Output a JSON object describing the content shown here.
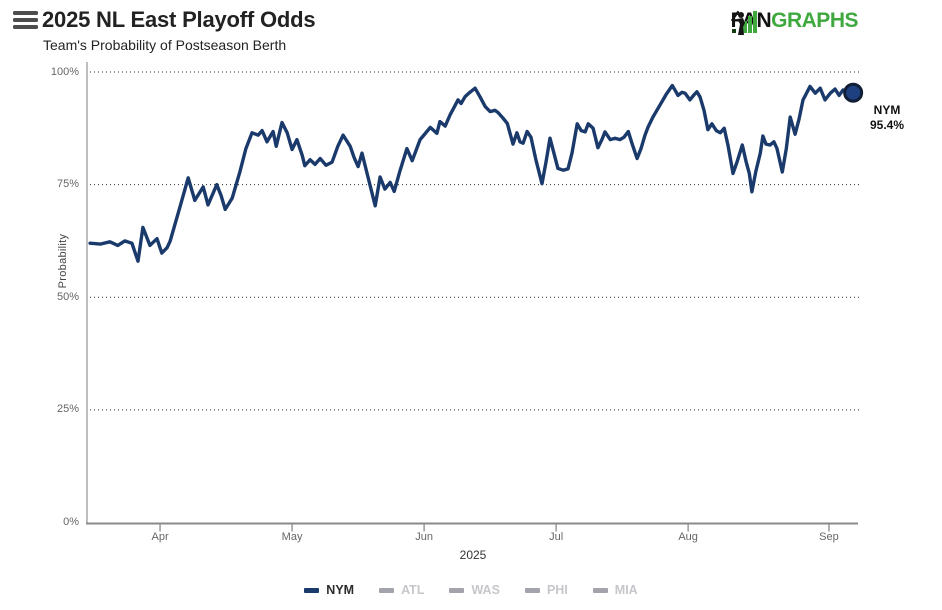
{
  "header": {
    "title": "2025 NL East Playoff Odds",
    "subtitle": "Team's Probability of Postseason Berth",
    "menu_icon": "hamburger-icon",
    "logo": {
      "text_black": "FAN",
      "text_green": "GRAPHS",
      "green": "#3fa83f",
      "icon": "fangraphs-batter-icon"
    }
  },
  "chart_data": {
    "type": "line",
    "title": "2025 NL East Playoff Odds",
    "subtitle": "Team's Probability of Postseason Berth",
    "ylabel": "Probability",
    "x_axis_title": "2025",
    "ylim": [
      0,
      100
    ],
    "grid": "dotted horizontal at 25% steps",
    "y_ticks": [
      {
        "label": "0%",
        "pct": 0
      },
      {
        "label": "25%",
        "pct": 25
      },
      {
        "label": "50%",
        "pct": 50
      },
      {
        "label": "75%",
        "pct": 75
      },
      {
        "label": "100%",
        "pct": 100
      }
    ],
    "x_range_days": [
      0,
      175.2
    ],
    "x_note": "day 0 = plot left edge (~Mar 16, 2025); ticks mark 1st of month",
    "x_ticks": [
      {
        "label": "Apr",
        "day": 16.6
      },
      {
        "label": "May",
        "day": 46.6
      },
      {
        "label": "Jun",
        "day": 76.6
      },
      {
        "label": "Jul",
        "day": 106.6
      },
      {
        "label": "Aug",
        "day": 136.6
      },
      {
        "label": "Sep",
        "day": 168.6
      }
    ],
    "legend_position": "bottom center",
    "legend": [
      {
        "label": "NYM",
        "dash_color": "#1b3a6c",
        "text_color": "#2b2b2b",
        "active": true
      },
      {
        "label": "ATL",
        "dash_color": "#a3a3ab",
        "text_color": "#c6c6cb",
        "active": false
      },
      {
        "label": "WAS",
        "dash_color": "#a3a3ab",
        "text_color": "#c6c6cb",
        "active": false
      },
      {
        "label": "PHI",
        "dash_color": "#a3a3ab",
        "text_color": "#c6c6cb",
        "active": false
      },
      {
        "label": "MIA",
        "dash_color": "#a3a3ab",
        "text_color": "#c6c6cb",
        "active": false
      }
    ],
    "series": [
      {
        "name": "NYM",
        "color": "#1b3a6c",
        "points": [
          [
            0.7,
            62
          ],
          [
            3,
            61.8
          ],
          [
            5.2,
            62.3
          ],
          [
            7,
            61.5
          ],
          [
            8.6,
            62.5
          ],
          [
            10.2,
            62
          ],
          [
            11.6,
            58
          ],
          [
            12.7,
            65.5
          ],
          [
            14.3,
            61.5
          ],
          [
            15.9,
            63
          ],
          [
            17,
            59.8
          ],
          [
            18.2,
            61
          ],
          [
            18.9,
            62.5
          ],
          [
            21.1,
            70
          ],
          [
            23,
            76.5
          ],
          [
            24.5,
            71.5
          ],
          [
            26.4,
            74.5
          ],
          [
            27.5,
            70.5
          ],
          [
            29.5,
            75
          ],
          [
            30.5,
            72.5
          ],
          [
            31.4,
            69.5
          ],
          [
            33,
            72
          ],
          [
            34.8,
            78
          ],
          [
            36.1,
            83
          ],
          [
            37.5,
            86.5
          ],
          [
            38.9,
            86
          ],
          [
            39.8,
            87
          ],
          [
            40.9,
            84.5
          ],
          [
            42.3,
            86.8
          ],
          [
            43,
            83.5
          ],
          [
            44.3,
            88.8
          ],
          [
            45.5,
            86.5
          ],
          [
            46.6,
            82.8
          ],
          [
            47.7,
            85
          ],
          [
            48.9,
            81.5
          ],
          [
            49.5,
            79.2
          ],
          [
            50.7,
            80.5
          ],
          [
            51.8,
            79.5
          ],
          [
            53,
            80.8
          ],
          [
            54.3,
            79.3
          ],
          [
            55.7,
            80
          ],
          [
            57,
            83.5
          ],
          [
            58.2,
            86
          ],
          [
            59.8,
            83.5
          ],
          [
            60.7,
            81
          ],
          [
            61.6,
            79
          ],
          [
            62.5,
            82
          ],
          [
            63.9,
            76.5
          ],
          [
            65.5,
            70.3
          ],
          [
            66.6,
            76.7
          ],
          [
            67.7,
            74
          ],
          [
            68.9,
            75.5
          ],
          [
            69.8,
            73.5
          ],
          [
            71.1,
            78
          ],
          [
            72.7,
            83
          ],
          [
            73.9,
            80.3
          ],
          [
            75.7,
            85
          ],
          [
            78,
            87.7
          ],
          [
            79.5,
            86.4
          ],
          [
            80.2,
            89
          ],
          [
            81.4,
            88
          ],
          [
            82.5,
            90.5
          ],
          [
            83.6,
            92.5
          ],
          [
            84.3,
            93.8
          ],
          [
            85,
            93
          ],
          [
            85.9,
            94.5
          ],
          [
            87,
            95.5
          ],
          [
            88.2,
            96.4
          ],
          [
            89.3,
            94.5
          ],
          [
            90.5,
            92.3
          ],
          [
            91.6,
            91.2
          ],
          [
            92.7,
            91.5
          ],
          [
            93.4,
            91
          ],
          [
            94.5,
            89.8
          ],
          [
            95.5,
            88.6
          ],
          [
            96.8,
            84
          ],
          [
            97.7,
            86.5
          ],
          [
            98.4,
            84.5
          ],
          [
            99.1,
            84.2
          ],
          [
            100,
            86.8
          ],
          [
            100.9,
            85.5
          ],
          [
            102,
            80.5
          ],
          [
            103.4,
            75.2
          ],
          [
            104.3,
            80
          ],
          [
            105.2,
            85.3
          ],
          [
            106.1,
            82
          ],
          [
            107,
            78.6
          ],
          [
            108.2,
            78.2
          ],
          [
            109.3,
            78.5
          ],
          [
            110.2,
            82
          ],
          [
            111.4,
            88.5
          ],
          [
            112.3,
            87
          ],
          [
            113.2,
            86.7
          ],
          [
            113.9,
            88.5
          ],
          [
            115,
            87.5
          ],
          [
            116.1,
            83.2
          ],
          [
            117,
            85
          ],
          [
            117.7,
            86.7
          ],
          [
            118.9,
            85
          ],
          [
            120,
            85.3
          ],
          [
            121.1,
            85
          ],
          [
            122,
            85.5
          ],
          [
            123,
            86.8
          ],
          [
            123.9,
            84
          ],
          [
            125,
            80.8
          ],
          [
            125.9,
            83
          ],
          [
            126.8,
            86
          ],
          [
            127.5,
            87.8
          ],
          [
            128.6,
            90
          ],
          [
            129.5,
            91.5
          ],
          [
            130.7,
            93.5
          ],
          [
            131.6,
            95
          ],
          [
            133,
            97
          ],
          [
            133.9,
            95.5
          ],
          [
            134.3,
            94.8
          ],
          [
            135.2,
            95.5
          ],
          [
            135.9,
            95.3
          ],
          [
            137,
            93.8
          ],
          [
            138,
            95
          ],
          [
            138.6,
            95.6
          ],
          [
            139.3,
            94.5
          ],
          [
            140.2,
            91.5
          ],
          [
            141.1,
            87.2
          ],
          [
            142,
            88.5
          ],
          [
            143,
            87
          ],
          [
            143.9,
            86.5
          ],
          [
            144.8,
            87.5
          ],
          [
            145.7,
            83.5
          ],
          [
            146.8,
            77.5
          ],
          [
            147.7,
            80
          ],
          [
            148.9,
            83.8
          ],
          [
            149.8,
            80
          ],
          [
            150.5,
            77.5
          ],
          [
            151.1,
            73.4
          ],
          [
            152,
            78
          ],
          [
            153,
            82
          ],
          [
            153.6,
            85.8
          ],
          [
            154.3,
            84
          ],
          [
            155.2,
            83.8
          ],
          [
            156.1,
            84.5
          ],
          [
            156.8,
            83
          ],
          [
            158,
            77.8
          ],
          [
            158.9,
            83
          ],
          [
            159.8,
            90
          ],
          [
            160.9,
            86.2
          ],
          [
            161.8,
            89.5
          ],
          [
            162.7,
            93.8
          ],
          [
            163.6,
            95.5
          ],
          [
            164.3,
            96.8
          ],
          [
            165.5,
            95.3
          ],
          [
            166.6,
            96.4
          ],
          [
            167.7,
            93.8
          ],
          [
            168.9,
            95.3
          ],
          [
            170,
            96.2
          ],
          [
            170.9,
            94.8
          ],
          [
            171.8,
            96
          ],
          [
            173,
            95.8
          ],
          [
            174.1,
            95.4
          ]
        ]
      }
    ],
    "end_marker": {
      "series": "NYM",
      "day": 174.1,
      "value": 95.4,
      "label_team": "NYM",
      "label_value": "95.4%",
      "dot_fill": "#1e4080",
      "dot_stroke": "#101e36"
    }
  }
}
